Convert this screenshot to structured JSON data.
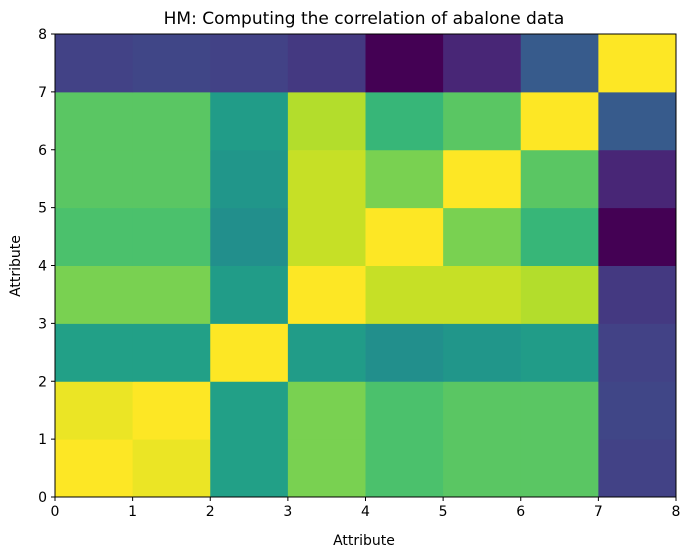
{
  "chart_data": {
    "type": "heatmap",
    "title": "HM: Computing the correlation of abalone data",
    "xlabel": "Attribute",
    "ylabel": "Attribute",
    "xlim": [
      0,
      8
    ],
    "ylim": [
      0,
      8
    ],
    "x_ticks": [
      "0",
      "1",
      "2",
      "3",
      "4",
      "5",
      "6",
      "7",
      "8"
    ],
    "y_ticks": [
      "0",
      "1",
      "2",
      "3",
      "4",
      "5",
      "6",
      "7",
      "8"
    ],
    "colormap": "viridis",
    "value_range": [
      0.42,
      1.0
    ],
    "grid": false,
    "values": [
      [
        1.0,
        0.99,
        0.83,
        0.93,
        0.9,
        0.91,
        0.91,
        0.56
      ],
      [
        0.99,
        1.0,
        0.83,
        0.93,
        0.9,
        0.91,
        0.91,
        0.57
      ],
      [
        0.83,
        0.83,
        1.0,
        0.82,
        0.78,
        0.8,
        0.82,
        0.56
      ],
      [
        0.93,
        0.93,
        0.82,
        1.0,
        0.97,
        0.97,
        0.96,
        0.54
      ],
      [
        0.9,
        0.9,
        0.78,
        0.97,
        1.0,
        0.93,
        0.88,
        0.42
      ],
      [
        0.91,
        0.91,
        0.8,
        0.97,
        0.93,
        1.0,
        0.91,
        0.5
      ],
      [
        0.91,
        0.91,
        0.82,
        0.96,
        0.88,
        0.91,
        1.0,
        0.63
      ],
      [
        0.56,
        0.57,
        0.56,
        0.54,
        0.42,
        0.5,
        0.63,
        1.0
      ]
    ]
  }
}
